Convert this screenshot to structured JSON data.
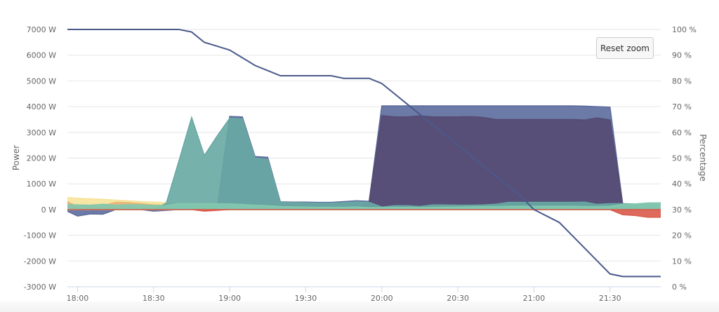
{
  "chart_data": {
    "type": "area",
    "x": [
      "17:55",
      "18:00",
      "18:05",
      "18:10",
      "18:15",
      "18:20",
      "18:25",
      "18:30",
      "18:35",
      "18:40",
      "18:45",
      "18:50",
      "18:55",
      "19:00",
      "19:05",
      "19:10",
      "19:15",
      "19:20",
      "19:25",
      "19:30",
      "19:35",
      "19:40",
      "19:45",
      "19:50",
      "19:55",
      "20:00",
      "20:05",
      "20:10",
      "20:15",
      "20:20",
      "20:25",
      "20:30",
      "20:35",
      "20:40",
      "20:45",
      "20:50",
      "20:55",
      "21:00",
      "21:05",
      "21:10",
      "21:15",
      "21:20",
      "21:25",
      "21:30",
      "21:35",
      "21:40",
      "21:45",
      "21:50"
    ],
    "xlim": [
      "17:56",
      "21:50"
    ],
    "x_ticks": [
      "18:00",
      "18:30",
      "19:00",
      "19:30",
      "20:00",
      "20:30",
      "21:00",
      "21:30"
    ],
    "y_left": {
      "label": "Power",
      "ylim": [
        -3000,
        7000
      ],
      "ticks": [
        "-3000 W",
        "-2000 W",
        "-1000 W",
        "0 W",
        "1000 W",
        "2000 W",
        "3000 W",
        "4000 W",
        "5000 W",
        "6000 W",
        "7000 W"
      ]
    },
    "y_right": {
      "label": "Percentage",
      "ylim": [
        0,
        100
      ],
      "ticks": [
        "0 %",
        "10 %",
        "20 %",
        "30 %",
        "40 %",
        "50 %",
        "60 %",
        "70 %",
        "80 %",
        "90 %",
        "100 %"
      ]
    },
    "grid": true,
    "series": [
      {
        "color": "#5b6b9c",
        "axis": "left",
        "kind": "area",
        "values": [
          -20,
          -250,
          -170,
          -180,
          0,
          0,
          0,
          -60,
          -30,
          0,
          0,
          0,
          0,
          3620,
          3600,
          2060,
          2030,
          300,
          290,
          290,
          280,
          280,
          310,
          340,
          320,
          4030,
          4030,
          4030,
          4030,
          4030,
          4030,
          4030,
          4030,
          4030,
          4030,
          4030,
          4030,
          4030,
          4030,
          4030,
          4030,
          4020,
          4000,
          3980,
          220,
          0,
          0,
          0
        ]
      },
      {
        "color": "#554a72",
        "axis": "left",
        "kind": "area",
        "values": [
          0,
          0,
          0,
          0,
          0,
          0,
          0,
          0,
          0,
          0,
          0,
          0,
          0,
          0,
          0,
          0,
          0,
          0,
          0,
          0,
          0,
          0,
          0,
          0,
          300,
          3650,
          3600,
          3600,
          3640,
          3600,
          3600,
          3600,
          3610,
          3580,
          3500,
          3500,
          3500,
          3500,
          3500,
          3500,
          3500,
          3480,
          3560,
          3480,
          200,
          0,
          0,
          0
        ]
      },
      {
        "color": "#f6e39a",
        "axis": "left",
        "kind": "area",
        "values": [
          480,
          440,
          420,
          400,
          370,
          340,
          310,
          290,
          270,
          250,
          230,
          220,
          210,
          200,
          190,
          170,
          150,
          120,
          100,
          80,
          60,
          50,
          40,
          30,
          30,
          20,
          20,
          20,
          20,
          20,
          20,
          20,
          20,
          20,
          20,
          20,
          20,
          20,
          20,
          20,
          20,
          20,
          20,
          20,
          20,
          20,
          20,
          20
        ]
      },
      {
        "color": "#eab276",
        "axis": "left",
        "kind": "area",
        "values": [
          350,
          120,
          150,
          150,
          280,
          270,
          230,
          180,
          170,
          150,
          100,
          80,
          60,
          50,
          40,
          30,
          20,
          20,
          20,
          20,
          20,
          20,
          20,
          20,
          20,
          10,
          10,
          10,
          10,
          10,
          10,
          10,
          10,
          10,
          10,
          10,
          10,
          10,
          10,
          10,
          10,
          10,
          10,
          10,
          10,
          10,
          10,
          10
        ]
      },
      {
        "color": "#68a8a3",
        "axis": "left",
        "kind": "area",
        "values": [
          0,
          0,
          0,
          0,
          0,
          0,
          0,
          0,
          250,
          1900,
          3580,
          2100,
          2850,
          3550,
          3520,
          2000,
          1950,
          280,
          270,
          260,
          250,
          250,
          270,
          300,
          280,
          100,
          150,
          150,
          120,
          180,
          180,
          170,
          170,
          180,
          210,
          280,
          280,
          280,
          280,
          280,
          280,
          290,
          200,
          230,
          230,
          220,
          250,
          260
        ]
      },
      {
        "color": "#82c8ae",
        "axis": "left",
        "kind": "area",
        "values": [
          200,
          180,
          170,
          210,
          170,
          190,
          180,
          160,
          150,
          240,
          230,
          230,
          230,
          220,
          200,
          170,
          150,
          120,
          110,
          100,
          90,
          90,
          90,
          100,
          80,
          80,
          90,
          90,
          80,
          90,
          100,
          100,
          110,
          120,
          120,
          130,
          130,
          130,
          130,
          130,
          130,
          120,
          120,
          130,
          200,
          220,
          260,
          260
        ]
      },
      {
        "color": "#d95a4b",
        "axis": "left",
        "kind": "area",
        "values": [
          0,
          0,
          0,
          0,
          0,
          0,
          0,
          0,
          0,
          0,
          0,
          -60,
          -30,
          0,
          0,
          0,
          0,
          0,
          0,
          0,
          0,
          0,
          0,
          0,
          0,
          0,
          0,
          0,
          0,
          0,
          0,
          0,
          0,
          0,
          0,
          0,
          0,
          0,
          0,
          0,
          0,
          0,
          0,
          0,
          -200,
          -230,
          -300,
          -300
        ]
      },
      {
        "color": "#4a5a8a",
        "axis": "right",
        "kind": "line",
        "values": [
          100,
          100,
          100,
          100,
          100,
          100,
          100,
          100,
          100,
          100,
          99,
          95,
          93.5,
          92,
          89,
          86,
          84,
          82,
          82,
          82,
          82,
          82,
          81,
          81,
          81,
          79,
          75,
          71,
          67,
          63,
          59,
          55,
          51,
          47,
          43,
          39,
          35,
          30,
          27.5,
          25,
          20,
          15,
          10,
          5,
          4,
          4,
          4,
          4
        ]
      }
    ]
  },
  "controls": {
    "reset_zoom": "Reset zoom"
  }
}
